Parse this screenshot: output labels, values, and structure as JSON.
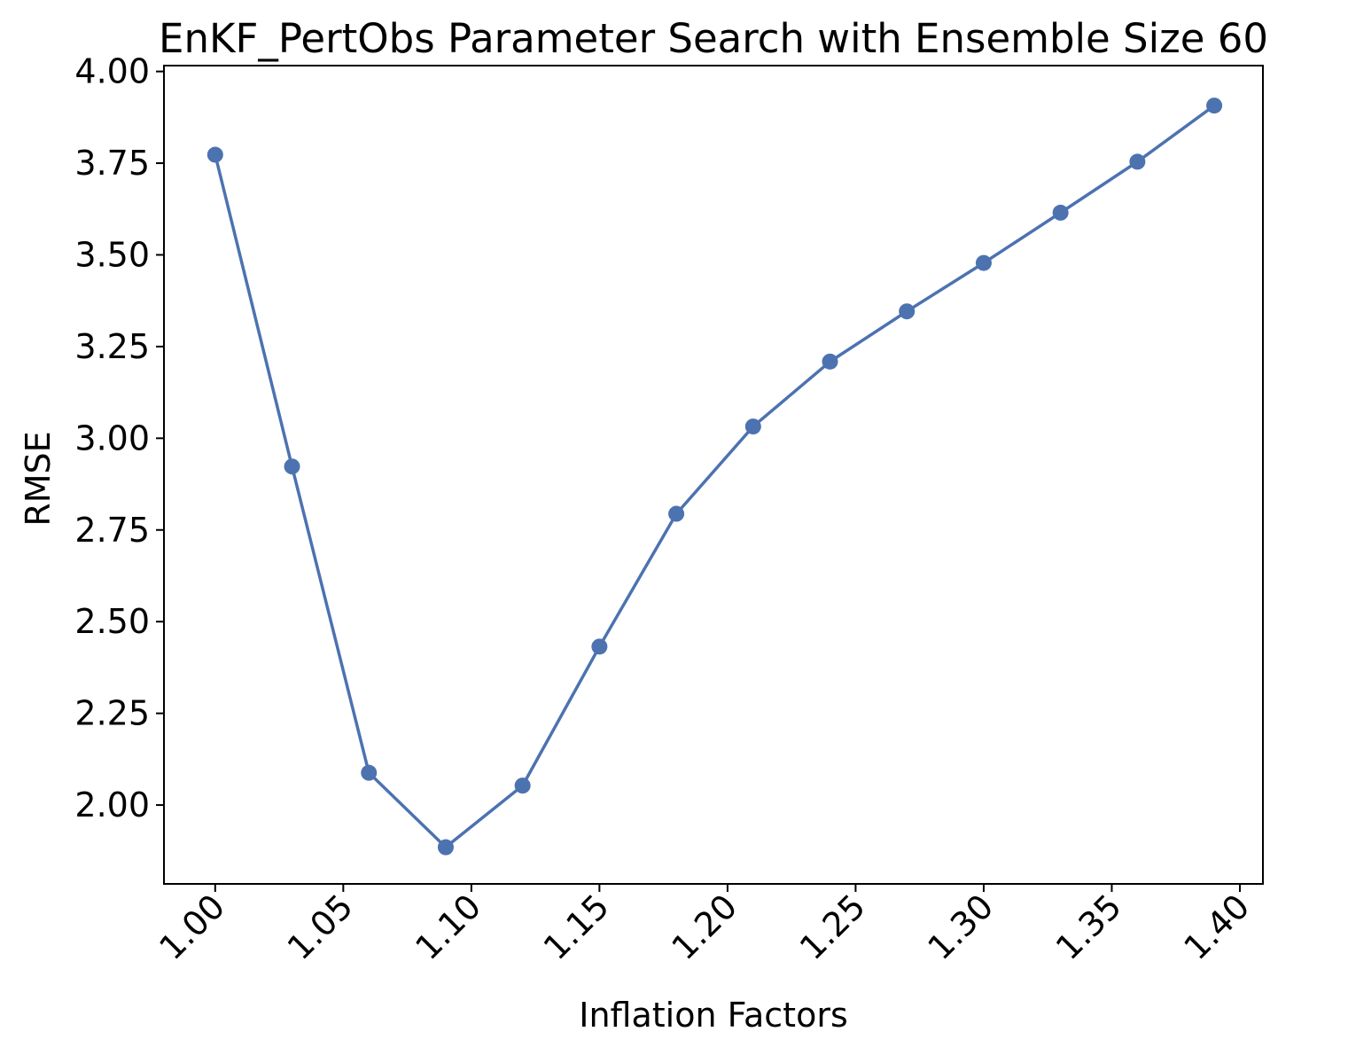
{
  "chart_data": {
    "type": "line",
    "title": "EnKF_PertObs Parameter Search with Ensemble Size 60",
    "xlabel": "Inflation Factors",
    "ylabel": "RMSE",
    "x": [
      1.0,
      1.03,
      1.06,
      1.09,
      1.12,
      1.15,
      1.18,
      1.21,
      1.24,
      1.27,
      1.3,
      1.33,
      1.36,
      1.39
    ],
    "series": [
      {
        "values": [
          3.773,
          2.923,
          2.088,
          1.885,
          2.053,
          2.432,
          2.794,
          3.032,
          3.209,
          3.346,
          3.478,
          3.615,
          3.754,
          3.907
        ],
        "color": "#4c72b0",
        "marker": "circle"
      }
    ],
    "xlim": [
      0.98,
      1.409
    ],
    "ylim": [
      1.785,
      4.016
    ],
    "xticks": [
      1.0,
      1.05,
      1.1,
      1.15,
      1.2,
      1.25,
      1.3,
      1.35,
      1.4
    ],
    "xtick_labels": [
      "1.00",
      "1.05",
      "1.10",
      "1.15",
      "1.20",
      "1.25",
      "1.30",
      "1.35",
      "1.40"
    ],
    "yticks": [
      2.0,
      2.25,
      2.5,
      2.75,
      3.0,
      3.25,
      3.5,
      3.75,
      4.0
    ],
    "ytick_labels": [
      "2.00",
      "2.25",
      "2.50",
      "2.75",
      "3.00",
      "3.25",
      "3.50",
      "3.75",
      "4.00"
    ],
    "grid": false,
    "legend": false
  }
}
